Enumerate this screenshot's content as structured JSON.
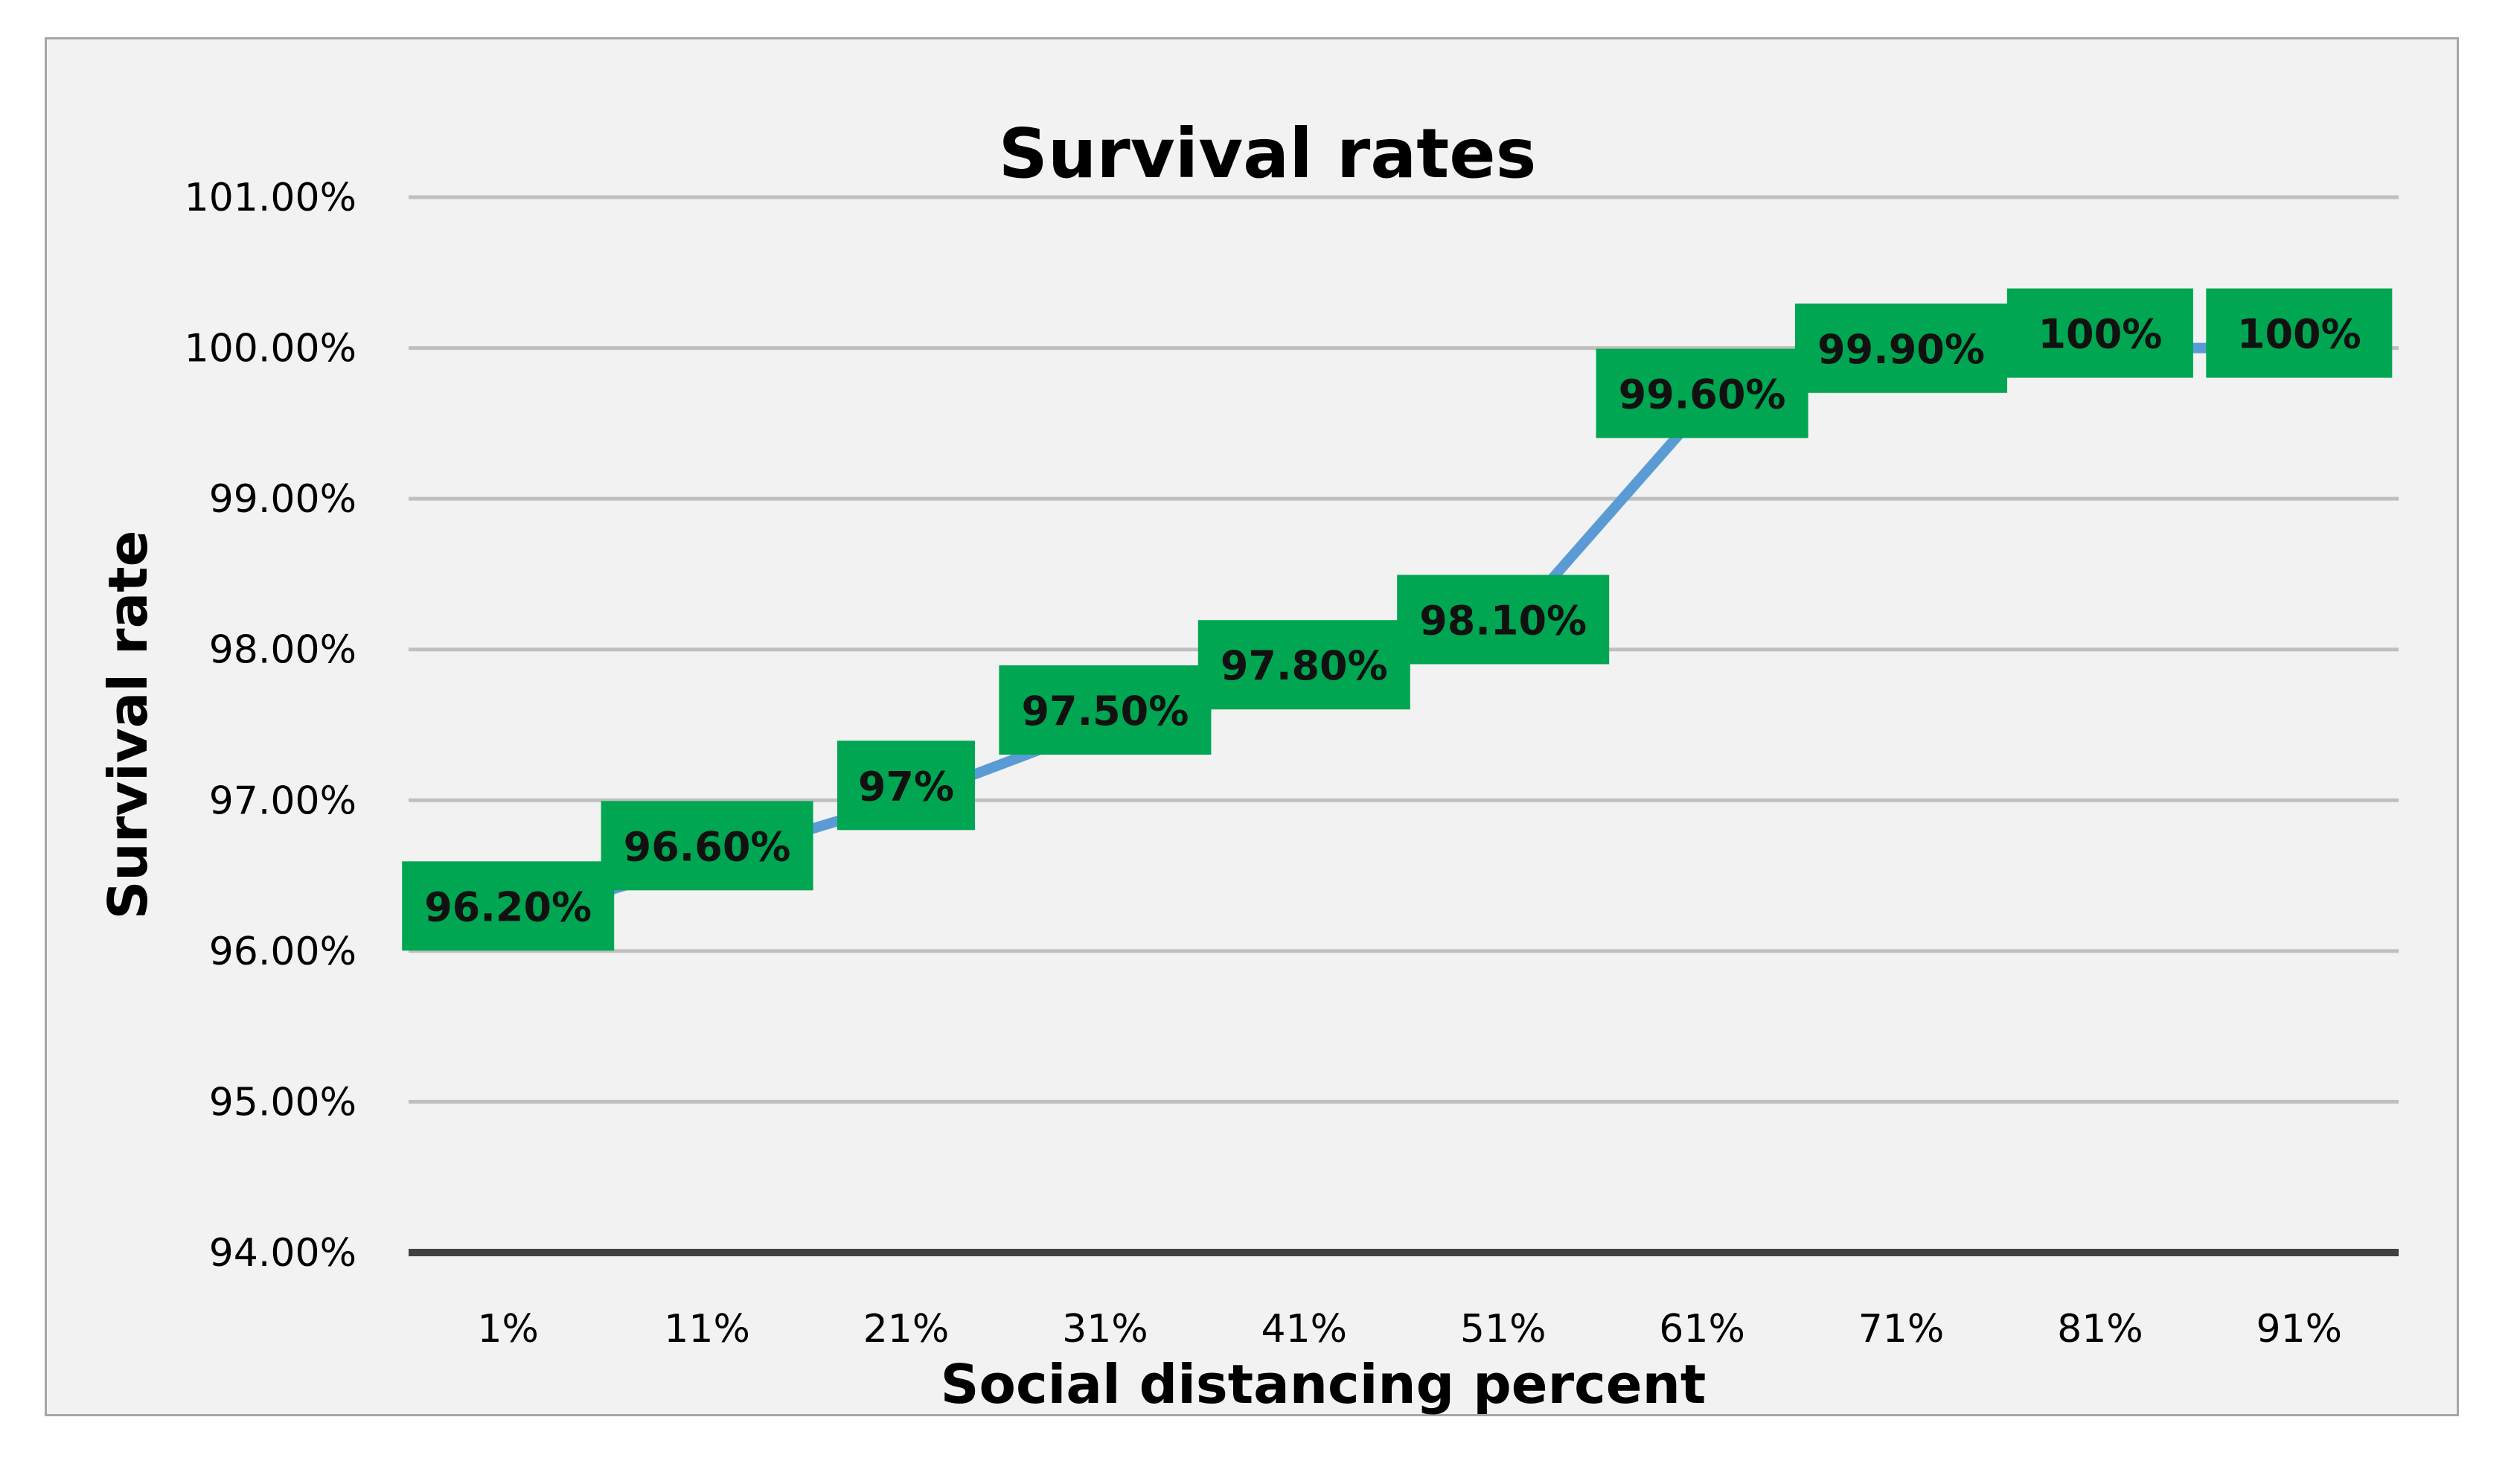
{
  "chart_data": {
    "type": "line",
    "title": "Survival rates",
    "xlabel": "Social distancing percent",
    "ylabel": "Survival rate",
    "categories": [
      "1%",
      "11%",
      "21%",
      "31%",
      "41%",
      "51%",
      "61%",
      "71%",
      "81%",
      "91%"
    ],
    "series": [
      {
        "name": "Survival rate",
        "values": [
          96.2,
          96.6,
          97.0,
          97.5,
          97.8,
          98.1,
          99.6,
          99.9,
          100.0,
          100.0
        ],
        "data_labels": [
          "96.20%",
          "96.60%",
          "97%",
          "97.50%",
          "97.80%",
          "98.10%",
          "99.60%",
          "99.90%",
          "100%",
          "100%"
        ]
      }
    ],
    "ylim": [
      94,
      101
    ],
    "y_ticks": [
      94,
      95,
      96,
      97,
      98,
      99,
      100,
      101
    ],
    "y_tick_labels": [
      "94.00%",
      "95.00%",
      "96.00%",
      "97.00%",
      "98.00%",
      "99.00%",
      "100.00%",
      "101.00%"
    ],
    "grid": true,
    "legend": "none",
    "colors": {
      "line": "#5b9bd5",
      "marker": "#5b9bd5",
      "label_box": "#00a651",
      "gridline": "#bfbfbf",
      "axis": "#404040",
      "background": "#f2f2f2"
    }
  }
}
